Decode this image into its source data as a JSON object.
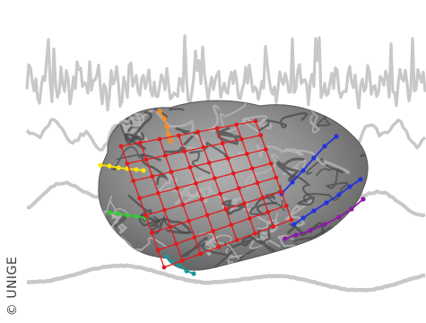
{
  "credit": {
    "text": "© UNIGE"
  },
  "colors": {
    "background": "#ffffff",
    "eeg_trace": "#c8c8c8",
    "brain_surface": "#8a8a8a",
    "electrode_grid": "#e41a1c",
    "strip_orange": "#ff8c1a",
    "strip_yellow": "#ffe600",
    "strip_green": "#33cc33",
    "strip_blue": "#2233dd",
    "strip_purple": "#8a1aa8",
    "strip_teal": "#1a9999"
  },
  "grid": {
    "rows": 8,
    "cols": 8
  },
  "strips": [
    {
      "name": "orange",
      "color": "#ff8c1a"
    },
    {
      "name": "yellow",
      "color": "#ffe600"
    },
    {
      "name": "green",
      "color": "#33cc33"
    },
    {
      "name": "blue-upper",
      "color": "#2233dd"
    },
    {
      "name": "blue-lower",
      "color": "#2233dd"
    },
    {
      "name": "purple",
      "color": "#8a1aa8"
    },
    {
      "name": "teal",
      "color": "#1a9999"
    }
  ]
}
